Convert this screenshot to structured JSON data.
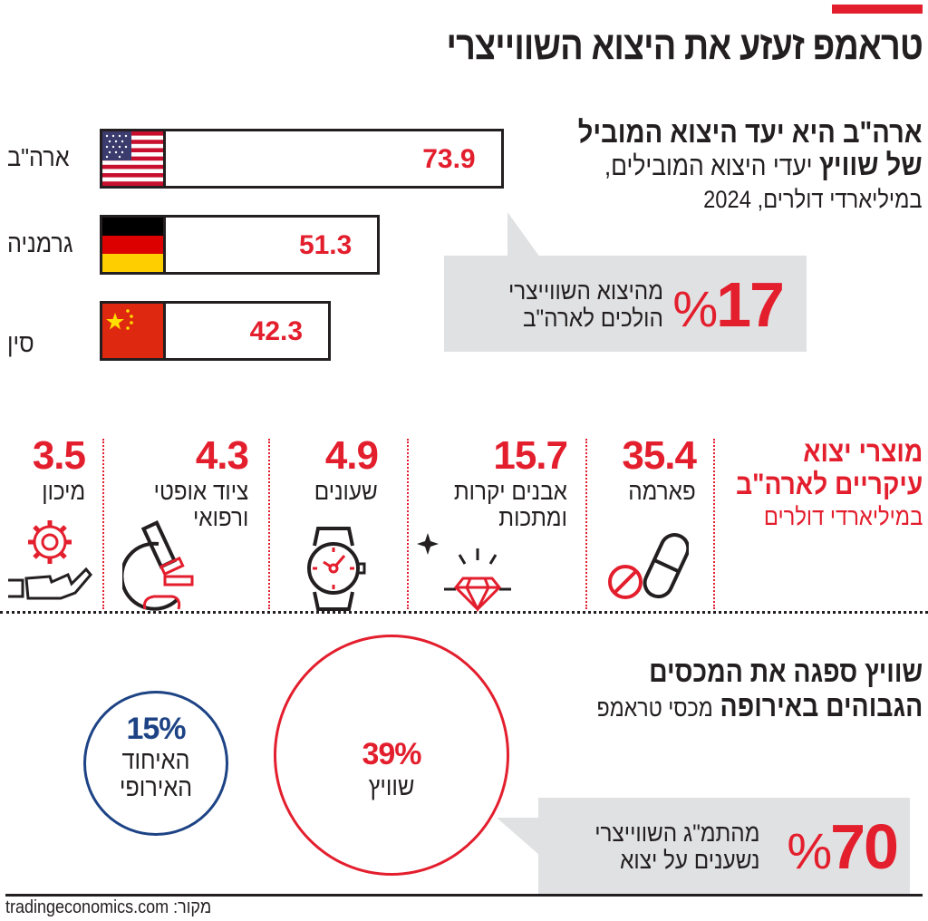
{
  "title": "טראמפ זעזע את היצוא השווייצרי",
  "colors": {
    "accent": "#e31e2d",
    "text": "#231f20",
    "callout_bg": "#e0e1e2",
    "eu_blue": "#1d4385"
  },
  "exports_section": {
    "heading_bold": "ארה\"ב היא יעד היצוא המוביל",
    "heading_bold_2": "של שוויץ",
    "heading_regular": "יעדי היצוא המובילים,",
    "unit_line": "במיליארדי דולרים, 2024",
    "callout": {
      "value": "17",
      "percent_sign": "%",
      "line1": "מהיצוא השווייצרי",
      "line2": "הולכים לארה\"ב"
    }
  },
  "chart_data": {
    "type": "bar",
    "orientation": "horizontal",
    "title": "ארה\"ב היא יעד היצוא המוביל של שוויץ",
    "subtitle": "יעדי היצוא המובילים, במיליארדי דולרים, 2024",
    "categories": [
      "ארה\"ב",
      "גרמניה",
      "סין"
    ],
    "values": [
      73.9,
      51.3,
      42.3
    ],
    "value_labels": [
      "73.9",
      "51.3",
      "42.3"
    ],
    "flags": [
      "us-flag",
      "germany-flag",
      "china-flag"
    ],
    "grid": false
  },
  "products_section": {
    "title_line1": "מוצרי יצוא",
    "title_line2": "עיקריים לארה\"ב",
    "unit": "במיליארדי דולרים",
    "items": [
      {
        "value": "35.4",
        "label1": "פארמה",
        "label2": "",
        "icon": "pill-icon"
      },
      {
        "value": "15.7",
        "label1": "אבנים יקרות",
        "label2": "ומתכות",
        "icon": "diamond-icon"
      },
      {
        "value": "4.9",
        "label1": "שעונים",
        "label2": "",
        "icon": "watch-icon"
      },
      {
        "value": "4.3",
        "label1": "ציוד אופטי",
        "label2": "ורפואי",
        "icon": "microscope-icon"
      },
      {
        "value": "3.5",
        "label1": "מיכון",
        "label2": "",
        "icon": "gear-hand-icon"
      }
    ]
  },
  "tariffs_section": {
    "heading_line1": "שוויץ ספגה את המכסים",
    "heading_line2_bold": "הגבוהים באירופה",
    "heading_line2_regular": "מכסי טראמפ",
    "swiss": {
      "value": "39%",
      "label": "שוויץ"
    },
    "eu": {
      "value": "15%",
      "label1": "האיחוד",
      "label2": "האירופי"
    },
    "callout": {
      "value": "70",
      "percent_sign": "%",
      "line1": "מהתמ\"ג השווייצרי",
      "line2": "נשענים על יצוא"
    }
  },
  "source": {
    "label": "מקור:",
    "value": "tradingeconomics.com"
  }
}
